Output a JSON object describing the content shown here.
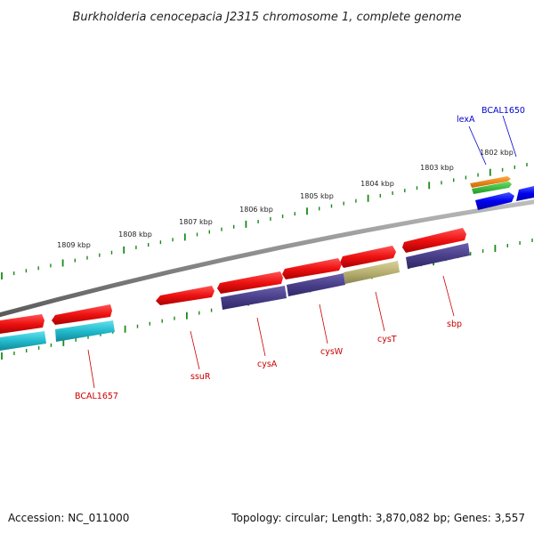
{
  "title": "Burkholderia cenocepacia J2315 chromosome 1, complete genome",
  "footer": {
    "accession": "Accession: NC_011000",
    "summary": "Topology: circular; Length: 3,870,082 bp; Genes: 3,557"
  },
  "colors": {
    "backbone": "#8a8a8a",
    "tick": "#1a8a1a",
    "label_red": "#cc0000",
    "label_blue": "#0000cc",
    "red": "#ee1111",
    "navy": "#4a3f8a",
    "olive": "#b8b070",
    "teal": "#22bbcc",
    "blue": "#0000ee",
    "orange": "#ee8800",
    "green": "#33bb33"
  },
  "scale_ticks": [
    {
      "label": "1802 kbp"
    },
    {
      "label": "1803 kbp"
    },
    {
      "label": "1804 kbp"
    },
    {
      "label": "1805 kbp"
    },
    {
      "label": "1806 kbp"
    },
    {
      "label": "1807 kbp"
    },
    {
      "label": "1808 kbp"
    },
    {
      "label": "1809 kbp"
    }
  ],
  "gene_labels": [
    {
      "text": "lexA",
      "color": "blue"
    },
    {
      "text": "BCAL1650",
      "color": "blue"
    },
    {
      "text": "sbp",
      "color": "red"
    },
    {
      "text": "cysT",
      "color": "red"
    },
    {
      "text": "cysW",
      "color": "red"
    },
    {
      "text": "cysA",
      "color": "red"
    },
    {
      "text": "ssuR",
      "color": "red"
    },
    {
      "text": "BCAL1657",
      "color": "red"
    }
  ]
}
